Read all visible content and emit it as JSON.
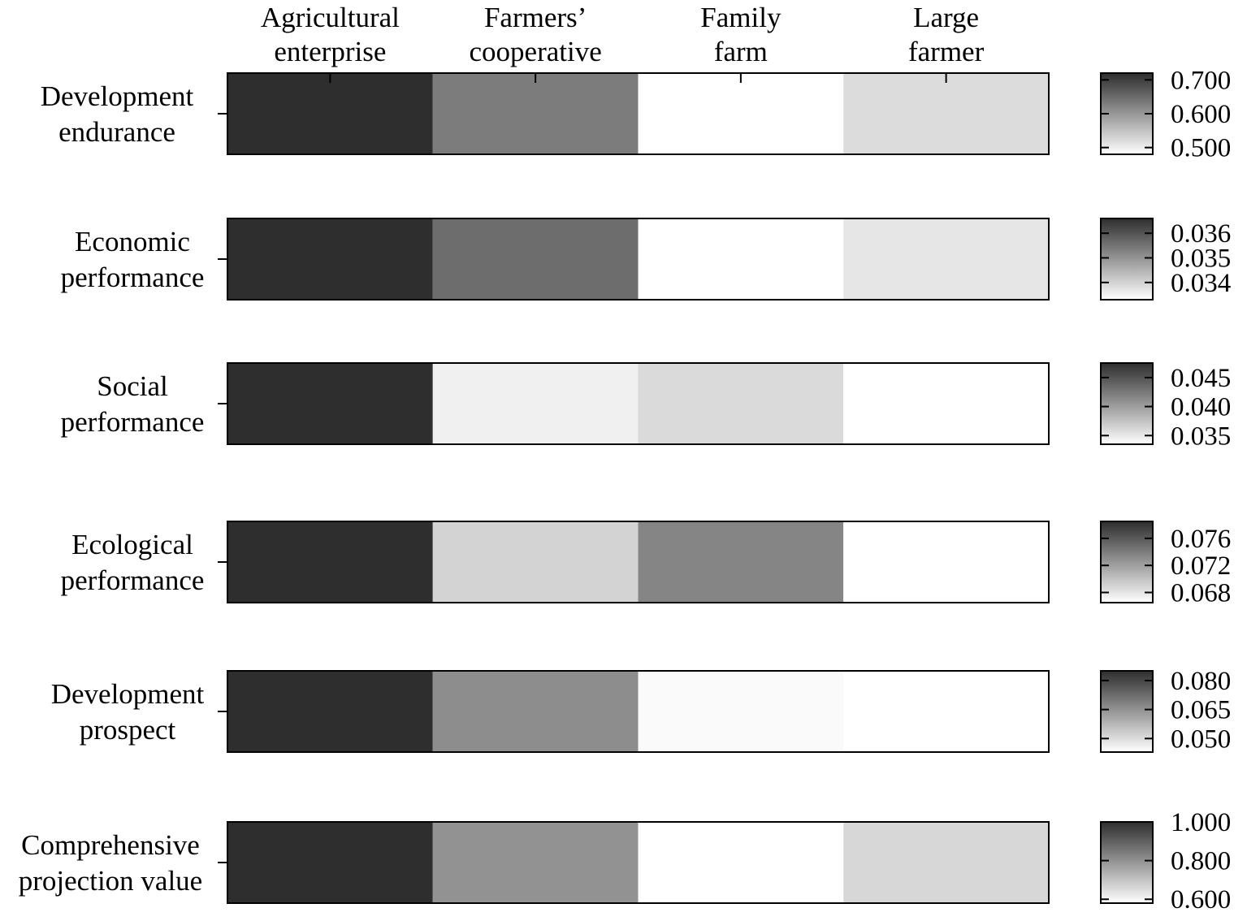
{
  "chart_data": {
    "type": "heatmap",
    "columns": [
      "Agricultural\nenterprise",
      "Farmers’\ncooperative",
      "Family\nfarm",
      "Large\nfarmer"
    ],
    "rows": [
      {
        "label": "Development\nendurance",
        "values": [
          0.72,
          0.63,
          0.48,
          0.52
        ],
        "legend": {
          "ticks": [
            "0.700",
            "0.600",
            "0.500"
          ],
          "tick_values": [
            0.7,
            0.6,
            0.5
          ],
          "range": [
            0.48,
            0.72
          ]
        }
      },
      {
        "label": "Economic\nperformance",
        "values": [
          0.0366,
          0.0356,
          0.0333,
          0.0337
        ],
        "legend": {
          "ticks": [
            "0.036",
            "0.035",
            "0.034"
          ],
          "tick_values": [
            0.036,
            0.035,
            0.034
          ],
          "range": [
            0.0333,
            0.0366
          ]
        }
      },
      {
        "label": "Social\nperformance",
        "values": [
          0.0475,
          0.0345,
          0.036,
          0.0335
        ],
        "legend": {
          "ticks": [
            "0.045",
            "0.040",
            "0.035"
          ],
          "tick_values": [
            0.045,
            0.04,
            0.035
          ],
          "range": [
            0.0335,
            0.0475
          ]
        }
      },
      {
        "label": "Ecological\nperformance",
        "values": [
          0.0785,
          0.069,
          0.0735,
          0.0665
        ],
        "legend": {
          "ticks": [
            "0.076",
            "0.072",
            "0.068"
          ],
          "tick_values": [
            0.076,
            0.072,
            0.068
          ],
          "range": [
            0.0665,
            0.0785
          ]
        }
      },
      {
        "label": "Development\nprospect",
        "values": [
          0.085,
          0.066,
          0.044,
          0.043
        ],
        "legend": {
          "ticks": [
            "0.080",
            "0.065",
            "0.050"
          ],
          "tick_values": [
            0.08,
            0.065,
            0.05
          ],
          "range": [
            0.043,
            0.085
          ]
        }
      },
      {
        "label": "Comprehensive\nprojection value",
        "values": [
          1.0,
          0.8,
          0.58,
          0.66
        ],
        "legend": {
          "ticks": [
            "1.000",
            "0.800",
            "0.600"
          ],
          "tick_values": [
            1.0,
            0.8,
            0.6
          ],
          "range": [
            0.58,
            1.0
          ]
        }
      }
    ],
    "colors": {
      "high": "#2e2e2e",
      "low": "#ffffff",
      "border": "#000000"
    }
  }
}
